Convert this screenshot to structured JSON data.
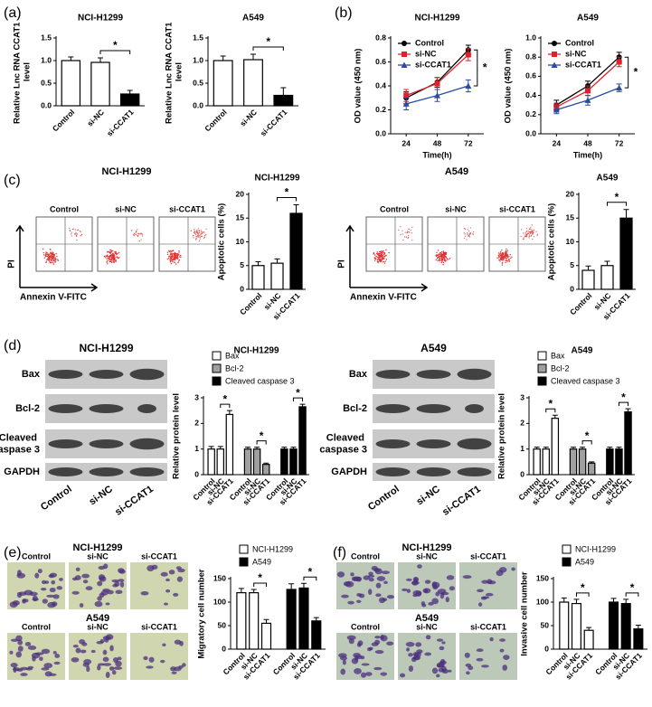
{
  "panel_labels": [
    "(a)",
    "(b)",
    "(c)",
    "(d)",
    "(e)",
    "(f)"
  ],
  "flow_panels": [
    {
      "title": "NCI-H1299",
      "conditions": [
        "Control",
        "si-NC",
        "si-CCAT1"
      ],
      "y_axis": "PI",
      "x_axis": "Annexin V-FITC"
    },
    {
      "title": "A549",
      "conditions": [
        "Control",
        "si-NC",
        "si-CCAT1"
      ],
      "y_axis": "PI",
      "x_axis": "Annexin V-FITC"
    }
  ],
  "blot_panels": [
    {
      "title": "NCI-H1299",
      "proteins": [
        "Bax",
        "Bcl-2",
        "Cleaved caspase 3",
        "GAPDH"
      ],
      "lanes": [
        "Control",
        "si-NC",
        "si-CCAT1"
      ]
    },
    {
      "title": "A549",
      "proteins": [
        "Bax",
        "Bcl-2",
        "Cleaved caspase 3",
        "GAPDH"
      ],
      "lanes": [
        "Control",
        "si-NC",
        "si-CCAT1"
      ]
    }
  ],
  "migration_panels": [
    {
      "rows": [
        {
          "title": "NCI-H1299",
          "conditions": [
            "Control",
            "si-NC",
            "si-CCAT1"
          ]
        },
        {
          "title": "A549",
          "conditions": [
            "Control",
            "si-NC",
            "si-CCAT1"
          ]
        }
      ]
    },
    {
      "rows": [
        {
          "title": "NCI-H1299",
          "conditions": [
            "Control",
            "si-NC",
            "si-CCAT1"
          ]
        },
        {
          "title": "A549",
          "conditions": [
            "Control",
            "si-NC",
            "si-CCAT1"
          ]
        }
      ]
    }
  ],
  "chart_data": [
    {
      "type": "bar",
      "title": "NCI-H1299",
      "y_label": "Relative Lnc RNA CCAT1 level",
      "categories": [
        "Control",
        "si-NC",
        "si-CCAT1"
      ],
      "values": [
        1.0,
        0.96,
        0.26
      ],
      "errors": [
        0.08,
        0.1,
        0.08
      ],
      "colors": [
        "#ffffff",
        "#ffffff",
        "#000000"
      ],
      "ylim": [
        0,
        1.5
      ],
      "yticks": [
        {
          "value": 0,
          "label": "0.0"
        },
        0.5,
        {
          "value": 1,
          "label": "1.0"
        },
        1.5
      ],
      "annotation": "*"
    },
    {
      "type": "bar",
      "title": "A549",
      "y_label": "Relative Lnc RNA CCAT1 level",
      "categories": [
        "Control",
        "si-NC",
        "si-CCAT1"
      ],
      "values": [
        1.0,
        1.02,
        0.23
      ],
      "errors": [
        0.1,
        0.12,
        0.17
      ],
      "colors": [
        "#ffffff",
        "#ffffff",
        "#000000"
      ],
      "ylim": [
        0,
        1.5
      ],
      "yticks": [
        {
          "value": 0,
          "label": "0.0"
        },
        0.5,
        {
          "value": 1,
          "label": "1.0"
        },
        1.5
      ],
      "annotation": "*"
    },
    {
      "type": "line",
      "title": "NCI-H1299",
      "y_label": "OD value (450 nm)",
      "x_label": "Time(h)",
      "x": [
        24,
        48,
        72
      ],
      "series": [
        {
          "name": "Control",
          "color": "#000000",
          "values": [
            0.3,
            0.43,
            0.7
          ],
          "errors": [
            0.05,
            0.04,
            0.04
          ]
        },
        {
          "name": "si-NC",
          "color": "#e0202a",
          "values": [
            0.32,
            0.42,
            0.66
          ],
          "errors": [
            0.05,
            0.05,
            0.05
          ]
        },
        {
          "name": "si-CCAT1",
          "color": "#2b4ba0",
          "values": [
            0.25,
            0.32,
            0.4
          ],
          "errors": [
            0.05,
            0.05,
            0.05
          ]
        }
      ],
      "xlim": [
        12,
        84
      ],
      "xticks": [
        24,
        48,
        72
      ],
      "ylim": [
        0,
        0.8
      ],
      "yticks": [
        {
          "value": 0,
          "label": "0.0"
        },
        0.2,
        0.4,
        0.6,
        0.8
      ],
      "legend": "upper left",
      "annotation": "*"
    },
    {
      "type": "line",
      "title": "A549",
      "y_label": "OD value (450 nm)",
      "x_label": "Time(h)",
      "x": [
        24,
        48,
        72
      ],
      "series": [
        {
          "name": "Control",
          "color": "#000000",
          "values": [
            0.3,
            0.5,
            0.8
          ],
          "errors": [
            0.05,
            0.05,
            0.05
          ]
        },
        {
          "name": "si-NC",
          "color": "#e0202a",
          "values": [
            0.28,
            0.45,
            0.75
          ],
          "errors": [
            0.04,
            0.05,
            0.05
          ]
        },
        {
          "name": "si-CCAT1",
          "color": "#2b4ba0",
          "values": [
            0.25,
            0.35,
            0.48
          ],
          "errors": [
            0.04,
            0.05,
            0.04
          ]
        }
      ],
      "xlim": [
        12,
        84
      ],
      "xticks": [
        24,
        48,
        72
      ],
      "ylim": [
        0,
        1.0
      ],
      "yticks": [
        {
          "value": 0,
          "label": "0.0"
        },
        0.2,
        0.4,
        0.6,
        0.8,
        {
          "value": 1,
          "label": "1.0"
        }
      ],
      "legend": "upper left",
      "annotation": "*"
    },
    {
      "type": "bar",
      "title": "NCI-H1299",
      "y_label": "Apoptotic cells (%)",
      "categories": [
        "Control",
        "si-NC",
        "si-CCAT1"
      ],
      "values": [
        5,
        5.5,
        16
      ],
      "errors": [
        0.8,
        0.9,
        1.8
      ],
      "colors": [
        "#ffffff",
        "#ffffff",
        "#000000"
      ],
      "ylim": [
        0,
        20
      ],
      "yticks": [
        0,
        5,
        10,
        15,
        20
      ],
      "annotation": "*"
    },
    {
      "type": "bar",
      "title": "A549",
      "y_label": "Apoptotic cells (%)",
      "categories": [
        "Control",
        "si-NC",
        "si-CCAT1"
      ],
      "values": [
        4,
        5,
        15
      ],
      "errors": [
        0.9,
        0.9,
        1.8
      ],
      "colors": [
        "#ffffff",
        "#ffffff",
        "#000000"
      ],
      "ylim": [
        0,
        20
      ],
      "yticks": [
        0,
        5,
        10,
        15,
        20
      ],
      "annotation": "*"
    },
    {
      "type": "grouped_bar",
      "title": "NCI-H1299",
      "y_label": "Relative protein level",
      "categories": [
        "Control",
        "si-NC",
        "si-CCAT1"
      ],
      "series": [
        {
          "name": "Bax",
          "color": "#ffffff",
          "values": [
            1.0,
            1.0,
            2.35
          ],
          "errors": [
            0.1,
            0.1,
            0.15
          ]
        },
        {
          "name": "Bcl-2",
          "color": "#a0a0a0",
          "values": [
            1.0,
            1.0,
            0.4
          ],
          "errors": [
            0.07,
            0.07,
            0.05
          ]
        },
        {
          "name": "Cleaved caspase 3",
          "color": "#000000",
          "values": [
            1.0,
            1.0,
            2.65
          ],
          "errors": [
            0.07,
            0.07,
            0.1
          ]
        }
      ],
      "ylim": [
        0,
        3
      ],
      "yticks": [
        0,
        1,
        2,
        3
      ],
      "legend": "upper left",
      "annotation": "*"
    },
    {
      "type": "grouped_bar",
      "title": "A549",
      "y_label": "Relative protein level",
      "categories": [
        "Control",
        "si-NC",
        "si-CCAT1"
      ],
      "series": [
        {
          "name": "Bax",
          "color": "#ffffff",
          "values": [
            1.0,
            1.0,
            2.2
          ],
          "errors": [
            0.07,
            0.07,
            0.12
          ]
        },
        {
          "name": "Bcl-2",
          "color": "#a0a0a0",
          "values": [
            1.0,
            1.0,
            0.45
          ],
          "errors": [
            0.07,
            0.07,
            0.05
          ]
        },
        {
          "name": "Cleaved caspase 3",
          "color": "#000000",
          "values": [
            1.0,
            1.0,
            2.45
          ],
          "errors": [
            0.07,
            0.07,
            0.12
          ]
        }
      ],
      "ylim": [
        0,
        3
      ],
      "yticks": [
        0,
        1,
        2,
        3
      ],
      "legend": "upper left",
      "annotation": "*"
    },
    {
      "type": "grouped_bar",
      "y_label": "Migratory cell number",
      "categories": [
        "Control",
        "si-NC",
        "si-CCAT1"
      ],
      "series": [
        {
          "name": "NCI-H1299",
          "color": "#ffffff",
          "values": [
            120,
            120,
            55
          ],
          "errors": [
            9,
            7,
            8
          ]
        },
        {
          "name": "A549",
          "color": "#000000",
          "values": [
            127,
            130,
            60
          ],
          "errors": [
            12,
            10,
            7
          ]
        }
      ],
      "ylim": [
        0,
        150
      ],
      "yticks": [
        0,
        50,
        100,
        150
      ],
      "legend": "upper left",
      "annotation": "*"
    },
    {
      "type": "grouped_bar",
      "y_label": "Invasive cell number",
      "categories": [
        "Control",
        "si-NC",
        "si-CCAT1"
      ],
      "series": [
        {
          "name": "NCI-H1299",
          "color": "#ffffff",
          "values": [
            100,
            97,
            40
          ],
          "errors": [
            9,
            9,
            6
          ]
        },
        {
          "name": "A549",
          "color": "#000000",
          "values": [
            100,
            97,
            43
          ],
          "errors": [
            8,
            9,
            8
          ]
        }
      ],
      "ylim": [
        0,
        150
      ],
      "yticks": [
        0,
        50,
        100,
        150
      ],
      "legend": "upper left",
      "annotation": "*"
    }
  ]
}
